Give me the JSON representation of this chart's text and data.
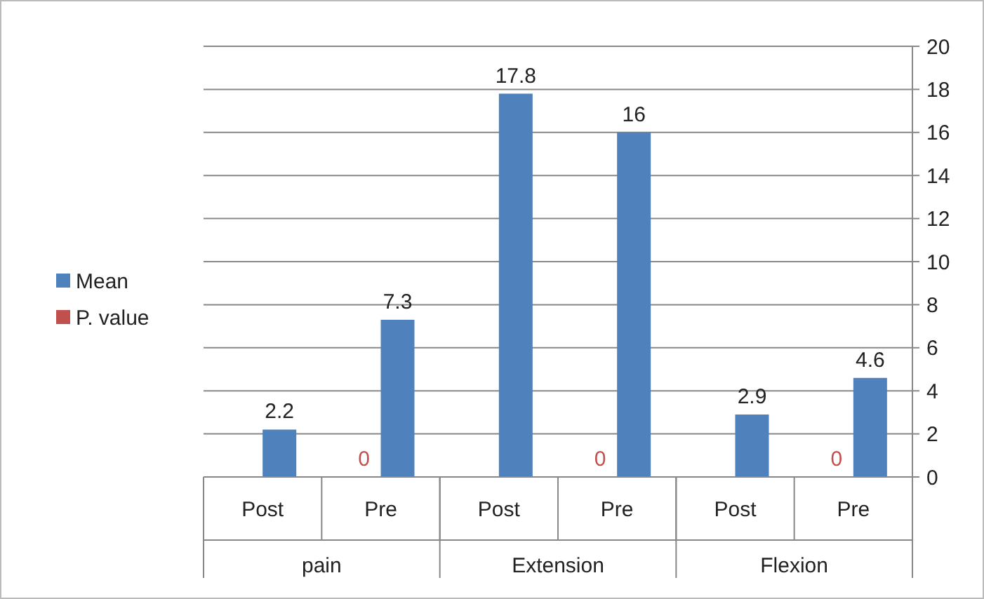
{
  "chart_data": {
    "type": "bar",
    "categories": [
      "Post",
      "Pre",
      "Post",
      "Pre",
      "Post",
      "Pre"
    ],
    "annotations": [
      "pain",
      "Extension",
      "Flexion"
    ],
    "series": [
      {
        "name": "Mean",
        "color": "#4f81bd",
        "values": [
          2.2,
          7.3,
          17.8,
          16,
          2.9,
          4.6
        ]
      },
      {
        "name": "P. value",
        "color": "#c0504d",
        "values": [
          null,
          0,
          null,
          0,
          null,
          0
        ]
      }
    ],
    "ylim": [
      0,
      20
    ],
    "yticks": [
      0,
      2,
      4,
      6,
      8,
      10,
      12,
      14,
      16,
      18,
      20
    ],
    "grid": "y",
    "legend": "left",
    "data_labels": true
  }
}
